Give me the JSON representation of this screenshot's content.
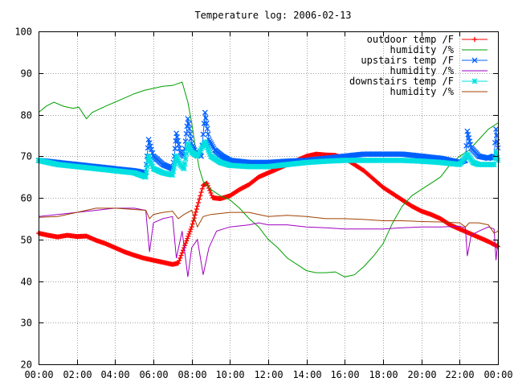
{
  "chart_data": {
    "type": "line",
    "title": "Temperature log: 2006-02-13",
    "xlabel": "",
    "ylabel": "",
    "xlim": [
      0,
      24
    ],
    "ylim": [
      20,
      100
    ],
    "x_ticks": [
      "00:00",
      "02:00",
      "04:00",
      "06:00",
      "08:00",
      "10:00",
      "12:00",
      "14:00",
      "16:00",
      "18:00",
      "20:00",
      "22:00",
      "00:00"
    ],
    "y_ticks": [
      "20",
      "30",
      "40",
      "50",
      "60",
      "70",
      "80",
      "90",
      "100"
    ],
    "grid": true,
    "legend_position": "top-right",
    "series": [
      {
        "name": "outdoor temp /F",
        "color": "#ff0000",
        "marker": "plus",
        "points": [
          [
            0,
            51.5
          ],
          [
            0.5,
            51
          ],
          [
            1,
            50.6
          ],
          [
            1.5,
            51
          ],
          [
            2,
            50.7
          ],
          [
            2.5,
            50.8
          ],
          [
            3,
            49.8
          ],
          [
            3.5,
            49
          ],
          [
            4,
            48
          ],
          [
            4.5,
            47
          ],
          [
            5,
            46.2
          ],
          [
            5.5,
            45.5
          ],
          [
            6,
            45
          ],
          [
            6.5,
            44.5
          ],
          [
            7,
            44
          ],
          [
            7.3,
            44.3
          ],
          [
            7.6,
            48
          ],
          [
            8,
            53
          ],
          [
            8.3,
            58
          ],
          [
            8.6,
            63
          ],
          [
            8.8,
            63.5
          ],
          [
            9.1,
            60
          ],
          [
            9.5,
            59.8
          ],
          [
            10,
            60.5
          ],
          [
            10.5,
            62
          ],
          [
            11,
            63.2
          ],
          [
            11.5,
            65
          ],
          [
            12,
            66
          ],
          [
            12.5,
            67
          ],
          [
            13,
            68
          ],
          [
            13.5,
            69
          ],
          [
            14,
            70
          ],
          [
            14.5,
            70.5
          ],
          [
            15,
            70.3
          ],
          [
            15.5,
            70.2
          ],
          [
            16,
            69.5
          ],
          [
            16.5,
            68
          ],
          [
            17,
            66.5
          ],
          [
            17.5,
            64.5
          ],
          [
            18,
            62.5
          ],
          [
            18.5,
            61
          ],
          [
            19,
            59.5
          ],
          [
            19.5,
            58
          ],
          [
            20,
            56.8
          ],
          [
            20.5,
            56
          ],
          [
            21,
            55
          ],
          [
            21.5,
            53.5
          ],
          [
            22,
            52.5
          ],
          [
            22.5,
            51.5
          ],
          [
            23,
            50.5
          ],
          [
            23.5,
            49.5
          ],
          [
            24,
            48.3
          ]
        ]
      },
      {
        "name": "humidity /%",
        "color": "#00a000",
        "marker": "none",
        "points": [
          [
            0,
            80.5
          ],
          [
            0.4,
            82
          ],
          [
            0.8,
            83
          ],
          [
            1.3,
            82
          ],
          [
            1.8,
            81.5
          ],
          [
            2.1,
            81.8
          ],
          [
            2.5,
            79
          ],
          [
            2.8,
            80.5
          ],
          [
            3.5,
            82
          ],
          [
            4,
            83
          ],
          [
            4.5,
            84
          ],
          [
            5,
            85
          ],
          [
            5.5,
            85.8
          ],
          [
            6,
            86.3
          ],
          [
            6.5,
            86.8
          ],
          [
            7,
            87
          ],
          [
            7.5,
            87.8
          ],
          [
            7.8,
            83
          ],
          [
            8,
            78
          ],
          [
            8.2,
            72
          ],
          [
            8.4,
            67
          ],
          [
            8.6,
            64
          ],
          [
            9,
            62
          ],
          [
            9.5,
            60.5
          ],
          [
            10,
            59.5
          ],
          [
            10.5,
            57.5
          ],
          [
            11,
            55
          ],
          [
            11.5,
            53
          ],
          [
            12,
            50
          ],
          [
            12.5,
            48
          ],
          [
            13,
            45.5
          ],
          [
            13.5,
            44
          ],
          [
            14,
            42.5
          ],
          [
            14.5,
            42
          ],
          [
            15,
            42
          ],
          [
            15.5,
            42.2
          ],
          [
            16,
            41
          ],
          [
            16.5,
            41.5
          ],
          [
            17,
            43.5
          ],
          [
            17.5,
            46
          ],
          [
            18,
            49
          ],
          [
            18.5,
            54
          ],
          [
            19,
            58
          ],
          [
            19.5,
            60.5
          ],
          [
            20,
            62
          ],
          [
            20.5,
            63.5
          ],
          [
            21,
            65
          ],
          [
            21.5,
            68
          ],
          [
            22,
            70
          ],
          [
            22.5,
            71.5
          ],
          [
            23,
            74
          ],
          [
            23.5,
            76.5
          ],
          [
            24,
            78
          ]
        ]
      },
      {
        "name": "upstairs temp /F",
        "color": "#0060ff",
        "marker": "cross",
        "points": [
          [
            0,
            69
          ],
          [
            1,
            68.5
          ],
          [
            2,
            68
          ],
          [
            3,
            67.5
          ],
          [
            4,
            67
          ],
          [
            5,
            66.5
          ],
          [
            5.6,
            66
          ],
          [
            5.75,
            74
          ],
          [
            6,
            70
          ],
          [
            6.5,
            68
          ],
          [
            7,
            67
          ],
          [
            7.1,
            70
          ],
          [
            7.2,
            75.5
          ],
          [
            7.4,
            71
          ],
          [
            7.6,
            70
          ],
          [
            7.8,
            79
          ],
          [
            8,
            73
          ],
          [
            8.2,
            71
          ],
          [
            8.5,
            70
          ],
          [
            8.7,
            80.5
          ],
          [
            8.9,
            74
          ],
          [
            9.2,
            71.5
          ],
          [
            9.6,
            70
          ],
          [
            10,
            69
          ],
          [
            11,
            68.5
          ],
          [
            12,
            68.5
          ],
          [
            13,
            68.8
          ],
          [
            14,
            69
          ],
          [
            15,
            69.5
          ],
          [
            16,
            70
          ],
          [
            17,
            70.5
          ],
          [
            18,
            70.5
          ],
          [
            19,
            70.5
          ],
          [
            20,
            70
          ],
          [
            21,
            69.5
          ],
          [
            22,
            68.5
          ],
          [
            22.3,
            69
          ],
          [
            22.4,
            76
          ],
          [
            22.6,
            72
          ],
          [
            23,
            70
          ],
          [
            23.5,
            69.5
          ],
          [
            23.8,
            70
          ],
          [
            23.9,
            76.5
          ],
          [
            24,
            72
          ]
        ]
      },
      {
        "name": "humidity /%",
        "color": "#a000c0",
        "marker": "none",
        "points": [
          [
            0,
            55.5
          ],
          [
            1,
            56
          ],
          [
            2,
            56.5
          ],
          [
            3,
            57
          ],
          [
            4,
            57.5
          ],
          [
            5,
            57.5
          ],
          [
            5.6,
            57
          ],
          [
            5.8,
            47
          ],
          [
            6,
            54
          ],
          [
            6.5,
            55
          ],
          [
            7,
            55.5
          ],
          [
            7.2,
            45.5
          ],
          [
            7.5,
            52
          ],
          [
            7.8,
            41
          ],
          [
            8,
            48
          ],
          [
            8.3,
            50
          ],
          [
            8.6,
            41.5
          ],
          [
            8.9,
            48
          ],
          [
            9.3,
            52
          ],
          [
            10,
            53
          ],
          [
            11,
            53.5
          ],
          [
            11.5,
            54
          ],
          [
            12,
            53.5
          ],
          [
            13,
            53.5
          ],
          [
            14,
            53
          ],
          [
            15,
            52.8
          ],
          [
            16,
            52.5
          ],
          [
            17,
            52.5
          ],
          [
            18,
            52.5
          ],
          [
            19,
            52.8
          ],
          [
            20,
            53
          ],
          [
            21,
            53
          ],
          [
            22,
            53.2
          ],
          [
            22.3,
            52.8
          ],
          [
            22.4,
            46
          ],
          [
            22.6,
            51
          ],
          [
            23,
            52
          ],
          [
            23.5,
            53
          ],
          [
            23.8,
            52.5
          ],
          [
            23.9,
            45
          ],
          [
            24,
            50
          ]
        ]
      },
      {
        "name": "downstairs temp /F",
        "color": "#00e0e0",
        "marker": "star",
        "points": [
          [
            0,
            69
          ],
          [
            1,
            68
          ],
          [
            2,
            67.5
          ],
          [
            3,
            67
          ],
          [
            4,
            66.5
          ],
          [
            5,
            66
          ],
          [
            5.6,
            65
          ],
          [
            5.75,
            70
          ],
          [
            6,
            67
          ],
          [
            6.5,
            66
          ],
          [
            7,
            65.5
          ],
          [
            7.2,
            70
          ],
          [
            7.4,
            68
          ],
          [
            7.6,
            67
          ],
          [
            7.8,
            73
          ],
          [
            8,
            71
          ],
          [
            8.3,
            70
          ],
          [
            8.7,
            73.5
          ],
          [
            9,
            70
          ],
          [
            9.5,
            68.5
          ],
          [
            10,
            67.8
          ],
          [
            11,
            67.5
          ],
          [
            12,
            67.5
          ],
          [
            13,
            68
          ],
          [
            14,
            68.5
          ],
          [
            15,
            68.8
          ],
          [
            16,
            69
          ],
          [
            17,
            69
          ],
          [
            18,
            69
          ],
          [
            19,
            69
          ],
          [
            20,
            68.8
          ],
          [
            21,
            68.5
          ],
          [
            22,
            68
          ],
          [
            22.4,
            70.5
          ],
          [
            22.7,
            68.5
          ],
          [
            23,
            68
          ],
          [
            23.5,
            68
          ],
          [
            23.8,
            68
          ],
          [
            23.9,
            71
          ],
          [
            24,
            69
          ]
        ]
      },
      {
        "name": "humidity /%",
        "color": "#a04000",
        "marker": "none",
        "points": [
          [
            0,
            55.3
          ],
          [
            1,
            55.5
          ],
          [
            2,
            56.5
          ],
          [
            3,
            57.5
          ],
          [
            4,
            57.5
          ],
          [
            5,
            57.2
          ],
          [
            5.6,
            57
          ],
          [
            5.8,
            55
          ],
          [
            6,
            56
          ],
          [
            6.5,
            56.5
          ],
          [
            7,
            56.8
          ],
          [
            7.3,
            55
          ],
          [
            7.6,
            56
          ],
          [
            8,
            57
          ],
          [
            8.3,
            53
          ],
          [
            8.6,
            55.5
          ],
          [
            9,
            56
          ],
          [
            10,
            56.5
          ],
          [
            11,
            56.5
          ],
          [
            11.5,
            56
          ],
          [
            12,
            55.5
          ],
          [
            13,
            55.8
          ],
          [
            14,
            55.5
          ],
          [
            15,
            55
          ],
          [
            16,
            55
          ],
          [
            17,
            54.8
          ],
          [
            18,
            54.5
          ],
          [
            19,
            54.5
          ],
          [
            20,
            54.3
          ],
          [
            21,
            54.2
          ],
          [
            22,
            54
          ],
          [
            22.3,
            53
          ],
          [
            22.5,
            54
          ],
          [
            23,
            54
          ],
          [
            23.5,
            53.5
          ],
          [
            23.8,
            51.5
          ],
          [
            24,
            52
          ]
        ]
      }
    ]
  }
}
